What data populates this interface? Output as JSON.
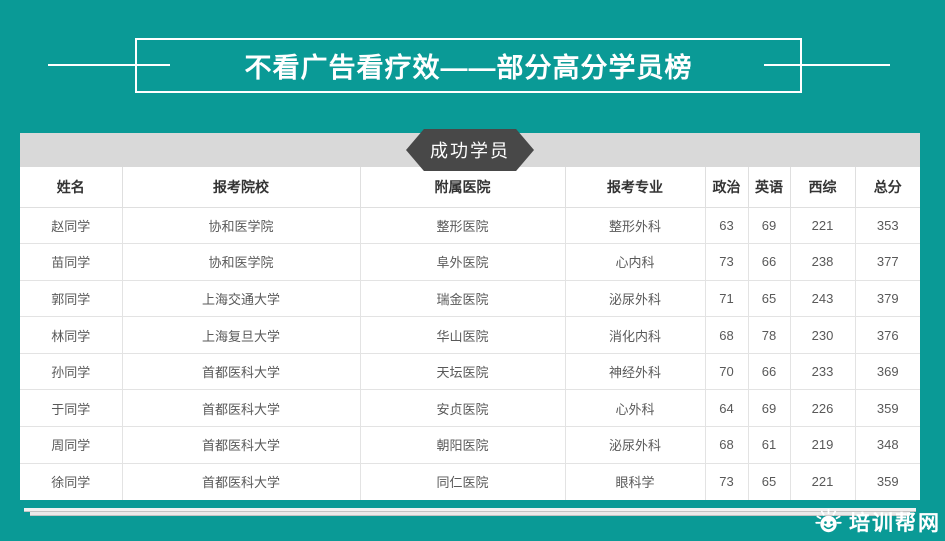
{
  "page": {
    "background_color": "#0a9a96",
    "accent_dark": "#484848",
    "banner_bar_color": "#d9d9d9"
  },
  "header": {
    "title": "不看广告看疗效——部分高分学员榜"
  },
  "banner": {
    "label": "成功学员"
  },
  "table": {
    "columns": [
      "姓名",
      "报考院校",
      "附属医院",
      "报考专业",
      "政治",
      "英语",
      "西综",
      "总分"
    ],
    "rows": [
      [
        "赵同学",
        "协和医学院",
        "整形医院",
        "整形外科",
        "63",
        "69",
        "221",
        "353"
      ],
      [
        "苗同学",
        "协和医学院",
        "阜外医院",
        "心内科",
        "73",
        "66",
        "238",
        "377"
      ],
      [
        "郭同学",
        "上海交通大学",
        "瑞金医院",
        "泌尿外科",
        "71",
        "65",
        "243",
        "379"
      ],
      [
        "林同学",
        "上海复旦大学",
        "华山医院",
        "消化内科",
        "68",
        "78",
        "230",
        "376"
      ],
      [
        "孙同学",
        "首都医科大学",
        "天坛医院",
        "神经外科",
        "70",
        "66",
        "233",
        "369"
      ],
      [
        "于同学",
        "首都医科大学",
        "安贞医院",
        "心外科",
        "64",
        "69",
        "226",
        "359"
      ],
      [
        "周同学",
        "首都医科大学",
        "朝阳医院",
        "泌尿外科",
        "68",
        "61",
        "219",
        "348"
      ],
      [
        "徐同学",
        "首都医科大学",
        "同仁医院",
        "眼科学",
        "73",
        "65",
        "221",
        "359"
      ]
    ]
  },
  "footer": {
    "logo_icon": "sun-face-icon",
    "logo_text": "培训帮网"
  }
}
